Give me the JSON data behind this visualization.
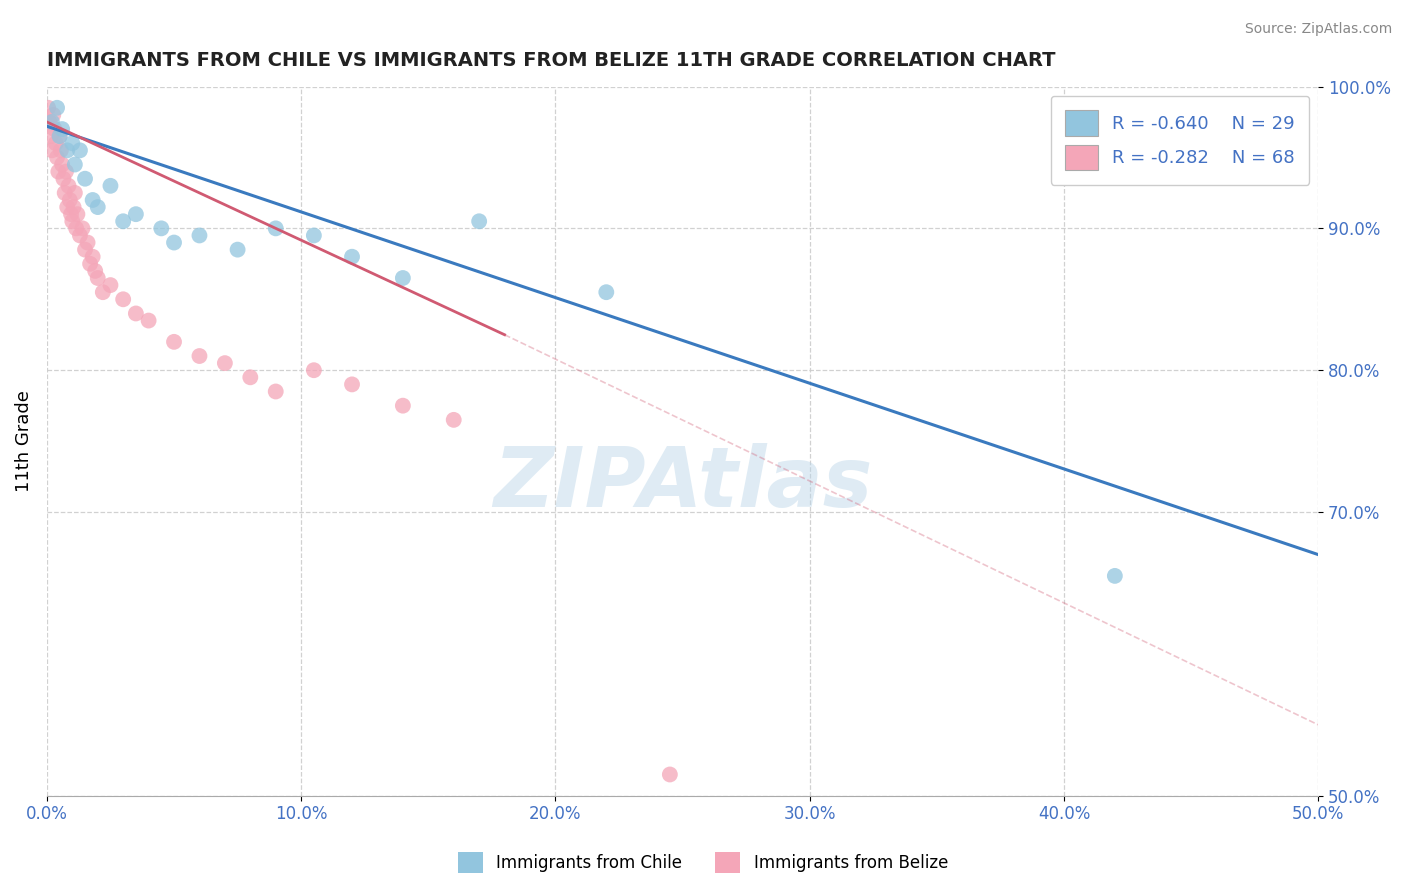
{
  "title": "IMMIGRANTS FROM CHILE VS IMMIGRANTS FROM BELIZE 11TH GRADE CORRELATION CHART",
  "source": "Source: ZipAtlas.com",
  "ylabel": "11th Grade",
  "xlim": [
    0.0,
    50.0
  ],
  "ylim": [
    50.0,
    100.0
  ],
  "xticks": [
    0.0,
    10.0,
    20.0,
    30.0,
    40.0,
    50.0
  ],
  "yticks": [
    100.0,
    90.0,
    80.0,
    70.0,
    50.0
  ],
  "chile_color": "#92c5de",
  "belize_color": "#f4a6b8",
  "chile_line_color": "#3a7abf",
  "belize_line_color": "#d05a72",
  "chile_R": -0.64,
  "chile_N": 29,
  "belize_R": -0.282,
  "belize_N": 68,
  "watermark": "ZIPAtlas",
  "legend_chile": "Immigrants from Chile",
  "legend_belize": "Immigrants from Belize",
  "chile_x": [
    0.2,
    0.4,
    0.5,
    0.6,
    0.8,
    1.0,
    1.1,
    1.3,
    1.5,
    1.8,
    2.0,
    2.5,
    3.0,
    3.5,
    4.5,
    5.0,
    6.0,
    7.5,
    9.0,
    10.5,
    12.0,
    14.0,
    17.0,
    22.0,
    42.0
  ],
  "chile_y": [
    97.5,
    98.5,
    96.5,
    97.0,
    95.5,
    96.0,
    94.5,
    95.5,
    93.5,
    92.0,
    91.5,
    93.0,
    90.5,
    91.0,
    90.0,
    89.0,
    89.5,
    88.5,
    90.0,
    89.5,
    88.0,
    86.5,
    90.5,
    85.5,
    65.5
  ],
  "belize_x": [
    0.05,
    0.1,
    0.15,
    0.2,
    0.25,
    0.3,
    0.35,
    0.4,
    0.45,
    0.5,
    0.55,
    0.6,
    0.65,
    0.7,
    0.75,
    0.8,
    0.85,
    0.9,
    0.95,
    1.0,
    1.05,
    1.1,
    1.15,
    1.2,
    1.3,
    1.4,
    1.5,
    1.6,
    1.7,
    1.8,
    1.9,
    2.0,
    2.2,
    2.5,
    3.0,
    3.5,
    4.0,
    5.0,
    6.0,
    7.0,
    8.0,
    9.0,
    10.5,
    12.0,
    14.0,
    16.0,
    24.5
  ],
  "belize_y": [
    98.5,
    97.5,
    96.5,
    95.5,
    98.0,
    97.0,
    96.0,
    95.0,
    94.0,
    96.5,
    95.5,
    94.5,
    93.5,
    92.5,
    94.0,
    91.5,
    93.0,
    92.0,
    91.0,
    90.5,
    91.5,
    92.5,
    90.0,
    91.0,
    89.5,
    90.0,
    88.5,
    89.0,
    87.5,
    88.0,
    87.0,
    86.5,
    85.5,
    86.0,
    85.0,
    84.0,
    83.5,
    82.0,
    81.0,
    80.5,
    79.5,
    78.5,
    80.0,
    79.0,
    77.5,
    76.5,
    51.5
  ],
  "chile_line_x0": 0.0,
  "chile_line_y0": 97.2,
  "chile_line_x1": 50.0,
  "chile_line_y1": 67.0,
  "belize_solid_x0": 0.0,
  "belize_solid_y0": 97.5,
  "belize_solid_x1": 18.0,
  "belize_solid_y1": 82.5,
  "belize_dash_x0": 18.0,
  "belize_dash_y0": 82.5,
  "belize_dash_x1": 50.0,
  "belize_dash_y1": 55.0
}
